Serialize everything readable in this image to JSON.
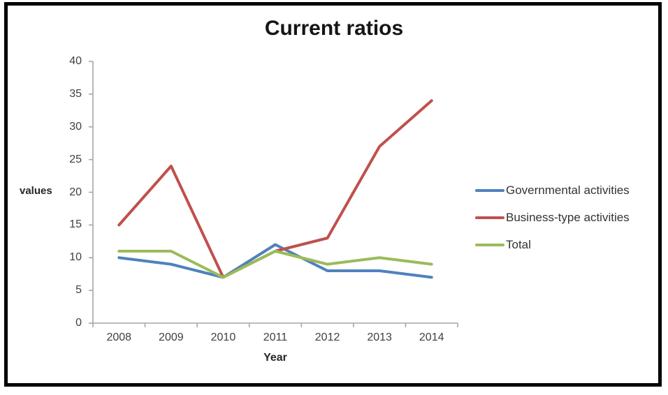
{
  "chart_data": {
    "type": "line",
    "title": "Current ratios",
    "xlabel": "Year",
    "ylabel": "values",
    "categories": [
      "2008",
      "2009",
      "2010",
      "2011",
      "2012",
      "2013",
      "2014"
    ],
    "series": [
      {
        "name": "Governmental activities",
        "color": "#4F81BD",
        "values": [
          10,
          9,
          7,
          12,
          8,
          8,
          7
        ]
      },
      {
        "name": "Business-type activities",
        "color": "#C0504D",
        "values": [
          15,
          24,
          7,
          11,
          13,
          27,
          34
        ]
      },
      {
        "name": "Total",
        "color": "#9BBB59",
        "values": [
          11,
          11,
          7,
          11,
          9,
          10,
          9
        ]
      }
    ],
    "ylim": [
      0,
      40
    ],
    "y_ticks": [
      0,
      5,
      10,
      15,
      20,
      25,
      30,
      35,
      40
    ],
    "grid": false,
    "legend_position": "right",
    "axis_color": "#A6A6A6",
    "frame_color": "#000000"
  }
}
